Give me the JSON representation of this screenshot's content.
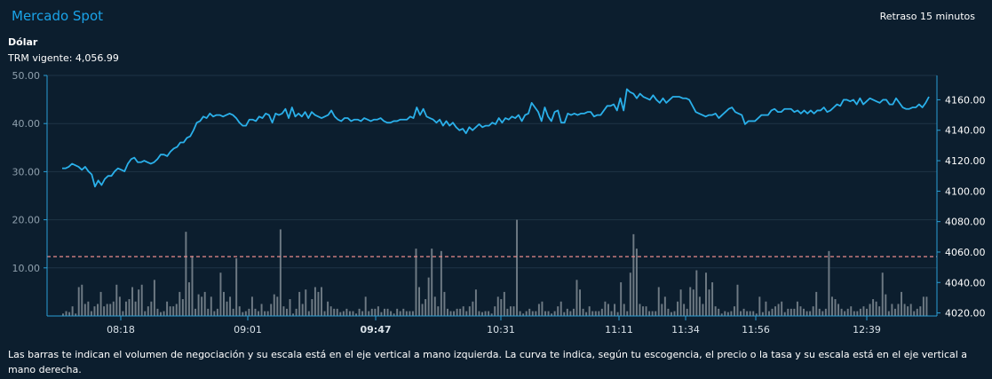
{
  "header": {
    "title": "Mercado Spot",
    "delay_label": "Retraso 15 minutos",
    "instrument": "Dólar",
    "trm_label": "TRM vigente: 4,056.99"
  },
  "footnote": "Las barras te indican el volumen de negociación y su escala está en el eje vertical a mano izquierda. La curva te indica, según tu escogencia, el precio o la tasa y su escala está en el eje vertical a mano derecha.",
  "colors": {
    "background": "#0c1e2e",
    "price_line": "#2ab0ea",
    "volume_bars": "#6e7a84",
    "trm_line": "#e88a8a",
    "axis": "#2a9fd6",
    "grid": "#1e3446"
  },
  "chart_data": {
    "type": "bar+line",
    "x_tick_labels": [
      "08:18",
      "09:01",
      "09:47",
      "10:31",
      "11:11",
      "11:34",
      "11:56",
      "12:39"
    ],
    "x_tick_bold": [
      false,
      false,
      true,
      false,
      false,
      false,
      false,
      false
    ],
    "y_left": {
      "label": "",
      "ticks": [
        10,
        20,
        30,
        40,
        50
      ],
      "tick_labels": [
        "10.00",
        "20.00",
        "30.00",
        "40.00",
        "50.00"
      ],
      "range": [
        0,
        50
      ]
    },
    "y_right": {
      "label": "",
      "ticks": [
        4020,
        4040,
        4060,
        4080,
        4100,
        4120,
        4140,
        4160
      ],
      "tick_labels": [
        "4020.00",
        "4040.00",
        "4060.00",
        "4080.00",
        "4100.00",
        "4120.00",
        "4140.00",
        "4160.00"
      ],
      "range": [
        4018,
        4176
      ]
    },
    "trm_reference": 4056.99,
    "volume": [
      0.5,
      1,
      0.8,
      2,
      0.5,
      6,
      6.5,
      2.5,
      3,
      1,
      2,
      2.5,
      5,
      2,
      2.5,
      2.5,
      3,
      6.5,
      4,
      1,
      3,
      3.5,
      6,
      3,
      5.5,
      6.5,
      1,
      2,
      3,
      7.5,
      1.5,
      0.8,
      1,
      3,
      2,
      2,
      2.5,
      5,
      3.5,
      17.5,
      7,
      12.5,
      1.5,
      4.5,
      4,
      5,
      1.5,
      4,
      1,
      1.5,
      9,
      5,
      3,
      4,
      1.5,
      12,
      2,
      0.8,
      1,
      1.5,
      4,
      1.5,
      1,
      2.5,
      1,
      1,
      2.5,
      4.5,
      4,
      18,
      2,
      1.5,
      3.5,
      0.5,
      1.5,
      5,
      2.5,
      5.5,
      1,
      3.5,
      6,
      5,
      6,
      1,
      3,
      2,
      1.5,
      1.5,
      0.8,
      1,
      1.5,
      1,
      1,
      0.5,
      1.5,
      1,
      4,
      1,
      1.5,
      1.5,
      2,
      0.8,
      1.5,
      1.5,
      1,
      0.5,
      1.5,
      1,
      1.5,
      1,
      1,
      1,
      14,
      6,
      2.5,
      3.5,
      8,
      14,
      4,
      2,
      13.5,
      5,
      1.5,
      1,
      1,
      1.5,
      1.5,
      2,
      1,
      2,
      3,
      5.5,
      1,
      0.8,
      1,
      1,
      0.5,
      2,
      4,
      3.5,
      5,
      1.5,
      2,
      2,
      20,
      1,
      0.5,
      1,
      1.5,
      1,
      1,
      2.5,
      3,
      1,
      1,
      0.5,
      1,
      2,
      3,
      0.8,
      1.5,
      1,
      1.5,
      7.5,
      5.5,
      1.5,
      0.8,
      2,
      1,
      1,
      1,
      1.5,
      3,
      2.5,
      1,
      2.5,
      0.8,
      7,
      2.5,
      1,
      9,
      17,
      14,
      2.5,
      2,
      2,
      1,
      1,
      1,
      6,
      2.5,
      4,
      1.5,
      0.8,
      1,
      3,
      5.5,
      2.5,
      1.5,
      6,
      5.5,
      9.5,
      4,
      2.5,
      9,
      5.5,
      7,
      2,
      1.5,
      0.5,
      1,
      0.8,
      1,
      2,
      6.5,
      1,
      1.5,
      1,
      1,
      1,
      0.5,
      4,
      0.8,
      3,
      1,
      1.5,
      2,
      2.5,
      3,
      0.8,
      1.5,
      1.5,
      1.5,
      3,
      2,
      1.5,
      1,
      1,
      2,
      5,
      1.5,
      1,
      1.5,
      13.5,
      4,
      3.5,
      2.5,
      1.5,
      1,
      1.5,
      2,
      1,
      1,
      1.5,
      2,
      1.5,
      2.5,
      3.5,
      3,
      2,
      9,
      4.5,
      1,
      2.5,
      1.5,
      2.5,
      5,
      2.5,
      2,
      2.5,
      1,
      1.5,
      2,
      4,
      4
    ],
    "price": [
      4115,
      4115,
      4116,
      4118,
      4117,
      4116,
      4114,
      4116,
      4113,
      4111,
      4103,
      4107,
      4104,
      4108,
      4110,
      4110,
      4113,
      4115,
      4114,
      4113,
      4118,
      4121,
      4122,
      4119,
      4119,
      4120,
      4119,
      4118,
      4119,
      4121,
      4124,
      4124,
      4123,
      4126,
      4128,
      4129,
      4132,
      4132,
      4135,
      4136,
      4140,
      4145,
      4146,
      4149,
      4148,
      4151,
      4149,
      4150,
      4150,
      4149,
      4150,
      4151,
      4150,
      4148,
      4145,
      4143,
      4143,
      4147,
      4147,
      4146,
      4149,
      4148,
      4151,
      4150,
      4145,
      4151,
      4150,
      4151,
      4154,
      4148,
      4155,
      4149,
      4151,
      4149,
      4152,
      4148,
      4152,
      4150,
      4149,
      4148,
      4149,
      4150,
      4153,
      4149,
      4147,
      4146,
      4148,
      4148,
      4146,
      4147,
      4147,
      4146,
      4148,
      4147,
      4146,
      4147,
      4147,
      4148,
      4146,
      4145,
      4145,
      4146,
      4146,
      4147,
      4147,
      4147,
      4149,
      4148,
      4155,
      4150,
      4154,
      4149,
      4148,
      4147,
      4145,
      4147,
      4143,
      4146,
      4143,
      4145,
      4142,
      4140,
      4141,
      4138,
      4142,
      4140,
      4142,
      4144,
      4142,
      4143,
      4143,
      4145,
      4144,
      4148,
      4145,
      4148,
      4147,
      4149,
      4148,
      4150,
      4146,
      4150,
      4151,
      4158,
      4155,
      4152,
      4146,
      4155,
      4149,
      4146,
      4152,
      4153,
      4145,
      4145,
      4151,
      4150,
      4151,
      4150,
      4151,
      4151,
      4152,
      4152,
      4149,
      4150,
      4150,
      4153,
      4156,
      4156,
      4157,
      4153,
      4161,
      4153,
      4167,
      4165,
      4164,
      4161,
      4164,
      4162,
      4161,
      4160,
      4163,
      4160,
      4158,
      4161,
      4158,
      4160,
      4162,
      4162,
      4162,
      4161,
      4161,
      4160,
      4156,
      4152,
      4151,
      4150,
      4149,
      4150,
      4150,
      4151,
      4148,
      4150,
      4152,
      4154,
      4155,
      4152,
      4151,
      4150,
      4144,
      4146,
      4146,
      4146,
      4148,
      4150,
      4150,
      4150,
      4153,
      4154,
      4152,
      4152,
      4154,
      4154,
      4154,
      4152,
      4153,
      4151,
      4153,
      4151,
      4153,
      4151,
      4153,
      4153,
      4155,
      4152,
      4153,
      4155,
      4157,
      4156,
      4160,
      4160,
      4159,
      4160,
      4157,
      4161,
      4157,
      4159,
      4161,
      4160,
      4159,
      4158,
      4160,
      4160,
      4157,
      4157,
      4161,
      4158,
      4155,
      4154,
      4154,
      4155,
      4155,
      4157,
      4155,
      4158,
      4162
    ]
  }
}
